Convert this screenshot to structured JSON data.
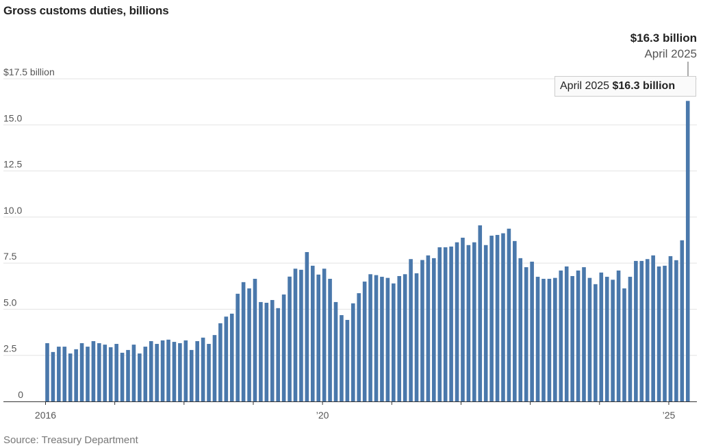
{
  "chart_data": {
    "type": "bar",
    "title": "Gross customs duties, billions",
    "source": "Source: Treasury Department",
    "xlabel": "",
    "ylabel": "",
    "ylim": [
      0,
      17.5
    ],
    "y_ticks": [
      {
        "value": 0,
        "label": "0"
      },
      {
        "value": 2.5,
        "label": "2.5"
      },
      {
        "value": 5,
        "label": "5.0"
      },
      {
        "value": 7.5,
        "label": "7.5"
      },
      {
        "value": 10,
        "label": "10.0"
      },
      {
        "value": 12.5,
        "label": "12.5"
      },
      {
        "value": 15,
        "label": "15.0"
      },
      {
        "value": 17.5,
        "label": "$17.5 billion"
      }
    ],
    "x_start": "2016-01",
    "x_end": "2025-04",
    "x_ticks": [
      {
        "year": 2016,
        "label": "2016"
      },
      {
        "year": 2017,
        "label": ""
      },
      {
        "year": 2018,
        "label": ""
      },
      {
        "year": 2019,
        "label": ""
      },
      {
        "year": 2020,
        "label": "’20"
      },
      {
        "year": 2021,
        "label": ""
      },
      {
        "year": 2022,
        "label": ""
      },
      {
        "year": 2023,
        "label": ""
      },
      {
        "year": 2024,
        "label": ""
      },
      {
        "year": 2025,
        "label": "’25"
      }
    ],
    "grid": true,
    "values": [
      3.16,
      2.68,
      2.97,
      2.97,
      2.6,
      2.83,
      3.16,
      2.97,
      3.27,
      3.16,
      3.08,
      2.94,
      3.12,
      2.64,
      2.79,
      3.08,
      2.6,
      2.97,
      3.27,
      3.12,
      3.31,
      3.35,
      3.23,
      3.16,
      3.31,
      2.79,
      3.27,
      3.46,
      3.12,
      3.6,
      4.24,
      4.6,
      4.76,
      5.84,
      6.47,
      6.13,
      6.65,
      5.39,
      5.35,
      5.5,
      5.06,
      5.8,
      6.77,
      7.2,
      7.14,
      8.1,
      7.36,
      6.88,
      7.2,
      6.65,
      5.39,
      4.68,
      4.42,
      5.32,
      5.87,
      6.5,
      6.9,
      6.85,
      6.76,
      6.7,
      6.4,
      6.8,
      6.9,
      7.72,
      6.95,
      7.67,
      7.92,
      7.77,
      8.36,
      8.36,
      8.4,
      8.63,
      8.88,
      8.48,
      8.63,
      9.55,
      8.48,
      8.99,
      9.03,
      9.12,
      9.37,
      8.7,
      7.77,
      7.28,
      7.58,
      6.76,
      6.65,
      6.65,
      6.7,
      7.1,
      7.32,
      6.8,
      7.1,
      7.28,
      6.7,
      6.36,
      6.99,
      6.76,
      6.6,
      7.1,
      6.13,
      6.76,
      7.62,
      7.62,
      7.72,
      7.92,
      7.32,
      7.36,
      7.88,
      7.66,
      8.74,
      16.3
    ],
    "bar_color": "#4a78ab",
    "annotation": {
      "value": "$16.3 billion",
      "date": "April 2025"
    },
    "tooltip": {
      "date": "April 2025",
      "value": "$16.3 billion"
    }
  }
}
